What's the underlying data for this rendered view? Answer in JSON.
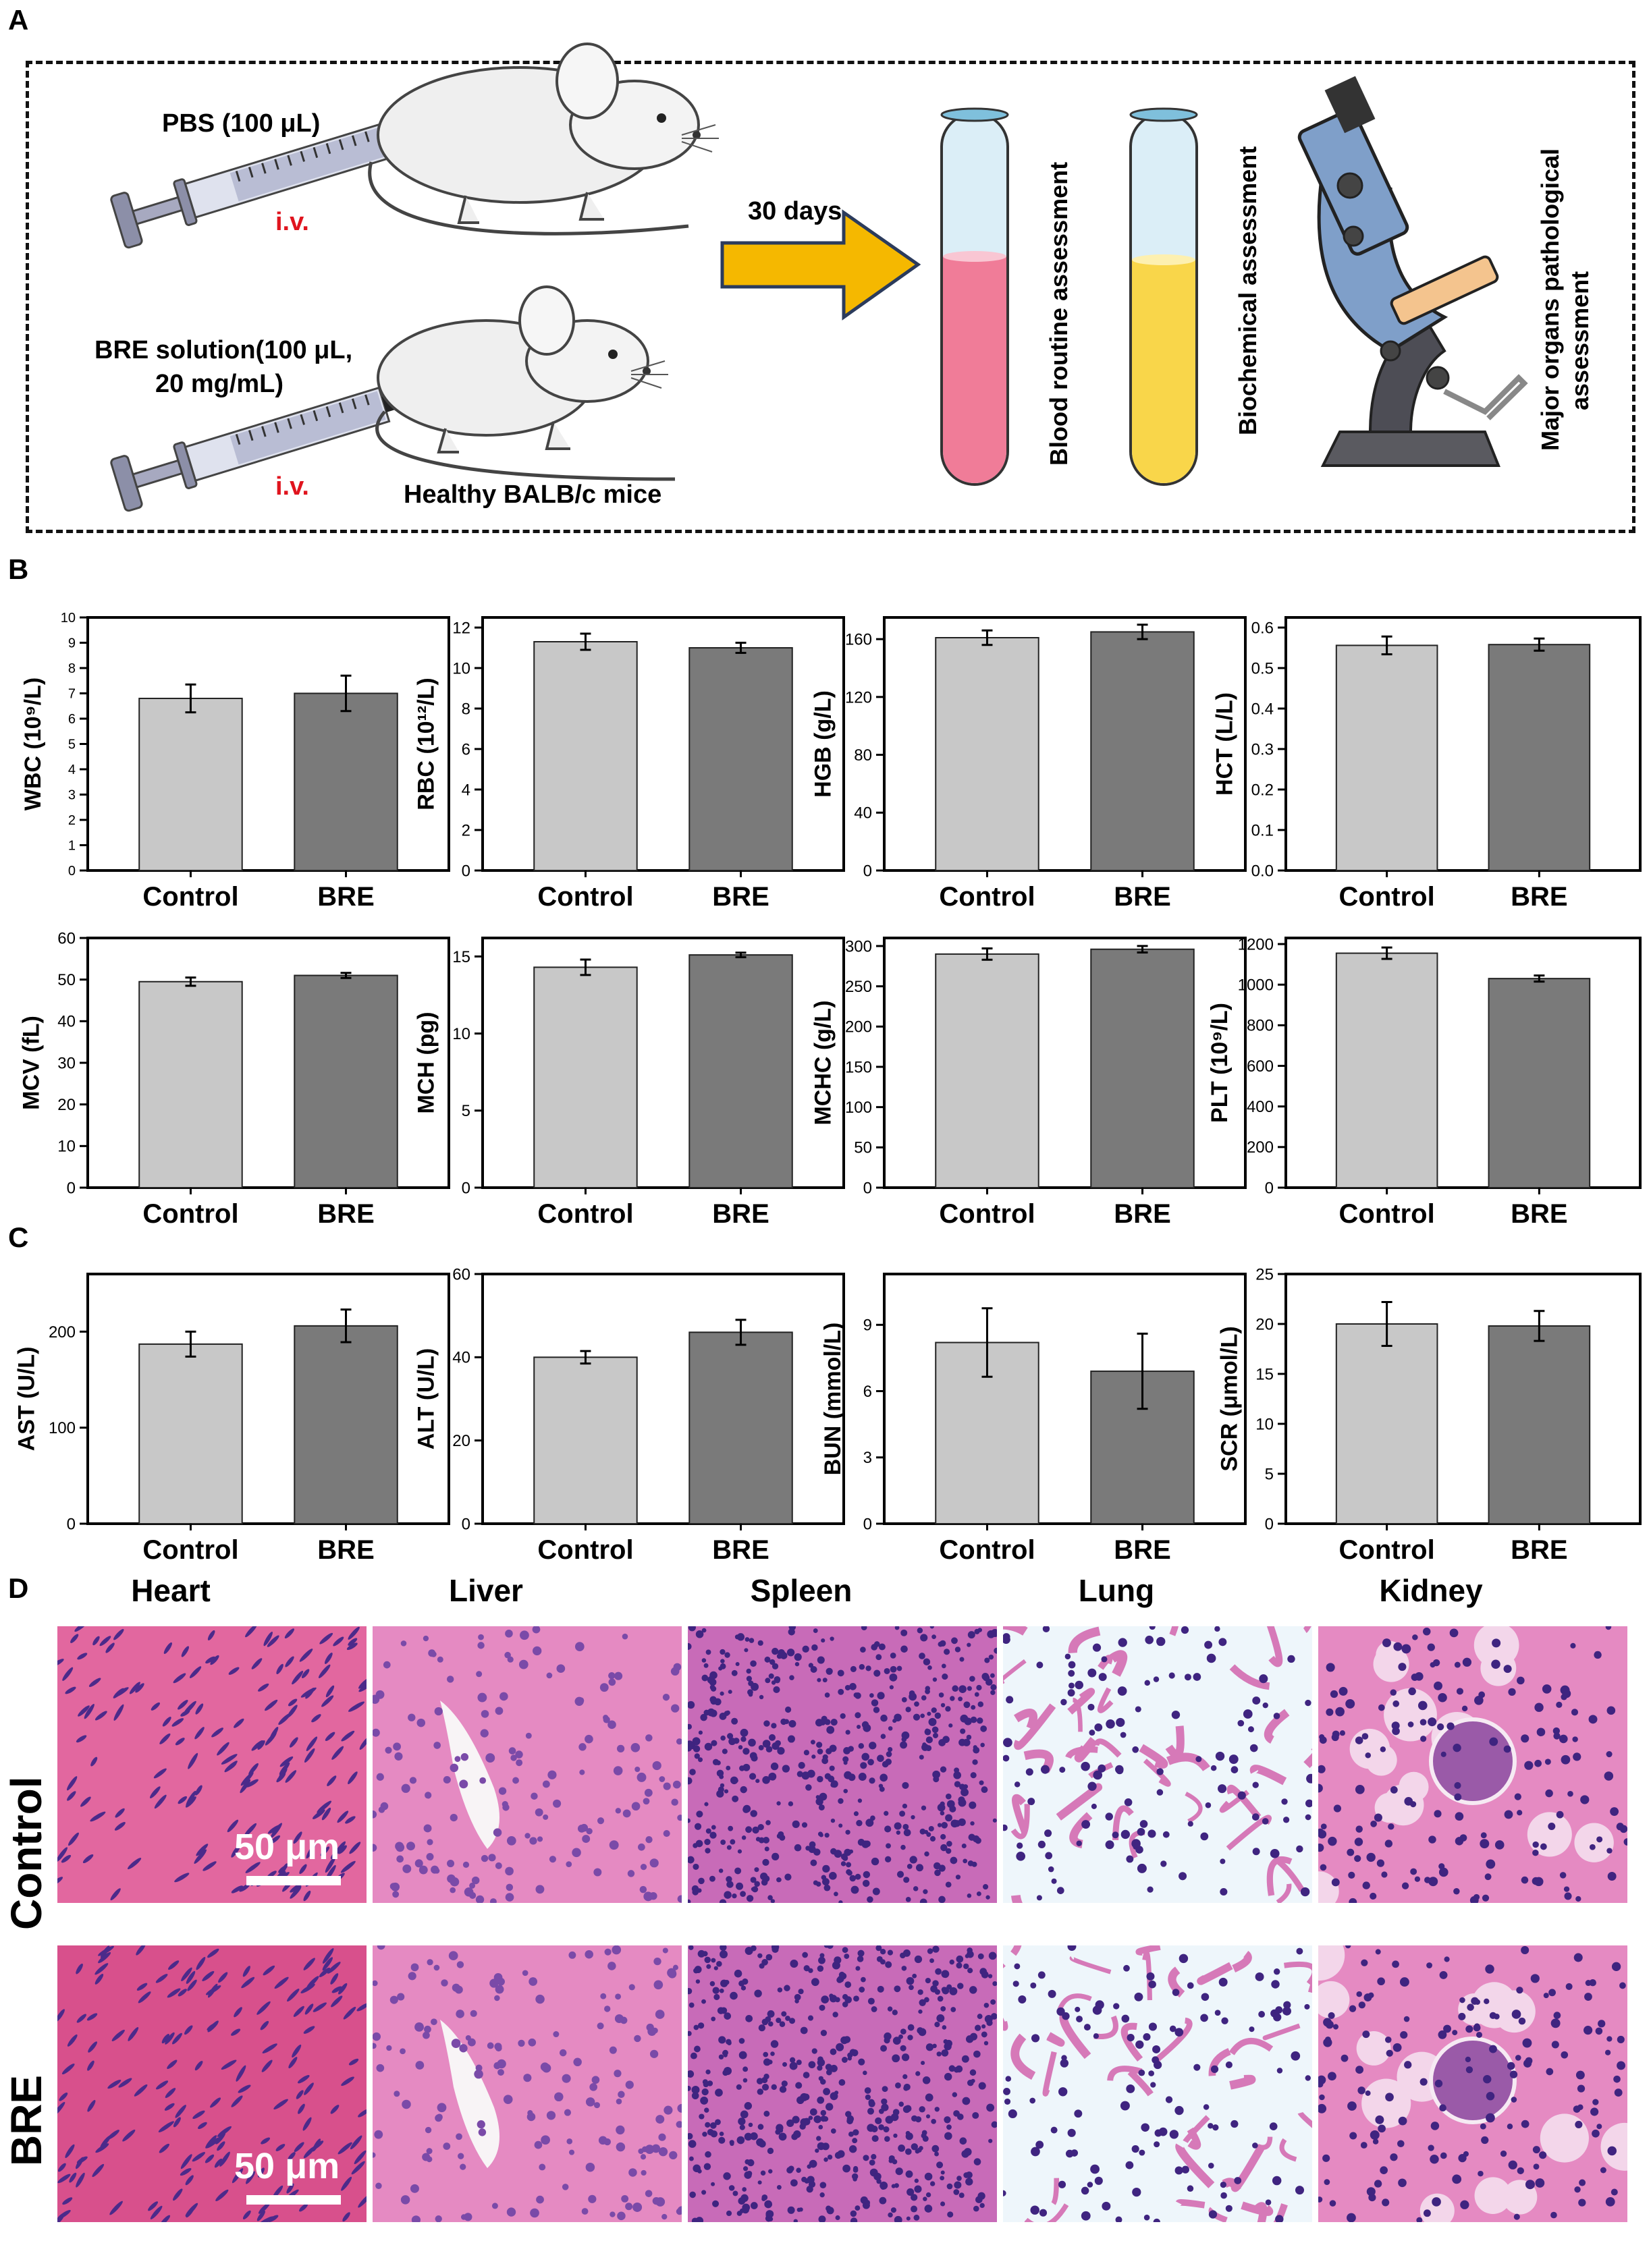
{
  "panels": {
    "a": "A",
    "b": "B",
    "c": "C",
    "d": "D"
  },
  "schematic": {
    "pbs_label": "PBS (100 μL)",
    "iv_label": "i.v.",
    "bre_line1": "BRE solution(100 μL,",
    "bre_line2": "20 mg/mL)",
    "mice_label": "Healthy BALB/c mice",
    "days_label": "30 days",
    "assess_blood": "Blood routine assessment",
    "assess_bio": "Biochemical assessment",
    "assess_organs_1": "Major organs pathological",
    "assess_organs_2": "assessment",
    "colors": {
      "arrow": "#f5b800",
      "blood": "#f07c98",
      "serum": "#f9d64a",
      "microscope": "#7f9fc9"
    }
  },
  "chart_data": [
    {
      "type": "bar",
      "categories": [
        "Control",
        "BRE"
      ],
      "values": [
        6.8,
        7.0
      ],
      "errors": [
        0.55,
        0.7
      ],
      "ylabel": "WBC (10⁹/L)",
      "ylim": [
        0,
        10
      ],
      "ticks": [
        "0",
        "1",
        "2",
        "3",
        "4",
        "5",
        "6",
        "7",
        "8",
        "9",
        "10"
      ],
      "grid": false,
      "colors": [
        "#c8c8c8",
        "#7a7a7a"
      ]
    },
    {
      "type": "bar",
      "categories": [
        "Control",
        "BRE"
      ],
      "values": [
        11.3,
        11.0
      ],
      "errors": [
        0.4,
        0.25
      ],
      "ylabel": "RBC (10¹²/L)",
      "ylim": [
        0,
        12.5
      ],
      "ticks": [
        "0",
        "2",
        "4",
        "6",
        "8",
        "10",
        "12"
      ],
      "grid": false,
      "colors": [
        "#c8c8c8",
        "#7a7a7a"
      ]
    },
    {
      "type": "bar",
      "categories": [
        "Control",
        "BRE"
      ],
      "values": [
        161,
        165
      ],
      "errors": [
        5,
        5
      ],
      "ylabel": "HGB (g/L)",
      "ylim": [
        0,
        175
      ],
      "ticks": [
        "0",
        "40",
        "80",
        "120",
        "160"
      ],
      "grid": false,
      "colors": [
        "#c8c8c8",
        "#7a7a7a"
      ]
    },
    {
      "type": "bar",
      "categories": [
        "Control",
        "BRE"
      ],
      "values": [
        0.556,
        0.558
      ],
      "errors": [
        0.022,
        0.015
      ],
      "ylabel": "HCT (L/L)",
      "ylim": [
        0,
        0.625
      ],
      "ticks": [
        "0.0",
        "0.1",
        "0.2",
        "0.3",
        "0.4",
        "0.5",
        "0.6"
      ],
      "grid": false,
      "colors": [
        "#c8c8c8",
        "#7a7a7a"
      ]
    },
    {
      "type": "bar",
      "categories": [
        "Control",
        "BRE"
      ],
      "values": [
        49.5,
        51.0
      ],
      "errors": [
        1.0,
        0.6
      ],
      "ylabel": "MCV (fL)",
      "ylim": [
        0,
        60
      ],
      "ticks": [
        "0",
        "10",
        "20",
        "30",
        "40",
        "50",
        "60"
      ],
      "grid": false,
      "colors": [
        "#c8c8c8",
        "#7a7a7a"
      ]
    },
    {
      "type": "bar",
      "categories": [
        "Control",
        "BRE"
      ],
      "values": [
        14.3,
        15.1
      ],
      "errors": [
        0.5,
        0.15
      ],
      "ylabel": "MCH (pg)",
      "ylim": [
        0,
        16.2
      ],
      "ticks": [
        "0",
        "5",
        "10",
        "15"
      ],
      "grid": false,
      "colors": [
        "#c8c8c8",
        "#7a7a7a"
      ]
    },
    {
      "type": "bar",
      "categories": [
        "Control",
        "BRE"
      ],
      "values": [
        290,
        296
      ],
      "errors": [
        7,
        4
      ],
      "ylabel": "MCHC (g/L)",
      "ylim": [
        0,
        310
      ],
      "ticks": [
        "0",
        "50",
        "100",
        "150",
        "200",
        "250",
        "300"
      ],
      "grid": false,
      "colors": [
        "#c8c8c8",
        "#7a7a7a"
      ]
    },
    {
      "type": "bar",
      "categories": [
        "Control",
        "BRE"
      ],
      "values": [
        1155,
        1030
      ],
      "errors": [
        28,
        15
      ],
      "ylabel": "PLT (10⁹/L)",
      "ylim": [
        0,
        1230
      ],
      "ticks": [
        "0",
        "200",
        "400",
        "600",
        "800",
        "1000",
        "1200"
      ],
      "grid": false,
      "colors": [
        "#c8c8c8",
        "#7a7a7a"
      ]
    },
    {
      "type": "bar",
      "categories": [
        "Control",
        "BRE"
      ],
      "values": [
        187,
        206
      ],
      "errors": [
        13,
        17
      ],
      "ylabel": "AST (U/L)",
      "ylim": [
        0,
        260
      ],
      "ticks": [
        "0",
        "100",
        "200"
      ],
      "grid": false,
      "colors": [
        "#c8c8c8",
        "#7a7a7a"
      ]
    },
    {
      "type": "bar",
      "categories": [
        "Control",
        "BRE"
      ],
      "values": [
        40,
        46
      ],
      "errors": [
        1.5,
        3
      ],
      "ylabel": "ALT (U/L)",
      "ylim": [
        0,
        60
      ],
      "ticks": [
        "0",
        "20",
        "40",
        "60"
      ],
      "grid": false,
      "colors": [
        "#c8c8c8",
        "#7a7a7a"
      ]
    },
    {
      "type": "bar",
      "categories": [
        "Control",
        "BRE"
      ],
      "values": [
        8.2,
        6.9
      ],
      "errors": [
        1.55,
        1.7
      ],
      "ylabel": "BUN (mmol/L)",
      "ylim": [
        0,
        11.3
      ],
      "ticks": [
        "0",
        "3",
        "6",
        "9"
      ],
      "grid": false,
      "colors": [
        "#c8c8c8",
        "#7a7a7a"
      ]
    },
    {
      "type": "bar",
      "categories": [
        "Control",
        "BRE"
      ],
      "values": [
        20.0,
        19.8
      ],
      "errors": [
        2.2,
        1.5
      ],
      "ylabel": "SCR (μmol/L)",
      "ylim": [
        0,
        25
      ],
      "ticks": [
        "0",
        "5",
        "10",
        "15",
        "20",
        "25"
      ],
      "grid": false,
      "colors": [
        "#c8c8c8",
        "#7a7a7a"
      ]
    }
  ],
  "histology": {
    "organs": [
      "Heart",
      "Liver",
      "Spleen",
      "Lung",
      "Kidney"
    ],
    "rows": [
      "Control",
      "BRE"
    ],
    "scale_bar": "50 μm",
    "colors": {
      "stain_pink": "#e07ab8",
      "stain_nuclei": "#4b2a8a",
      "lung_space": "#eef6fb",
      "heart_bg": "#d8508c"
    }
  }
}
